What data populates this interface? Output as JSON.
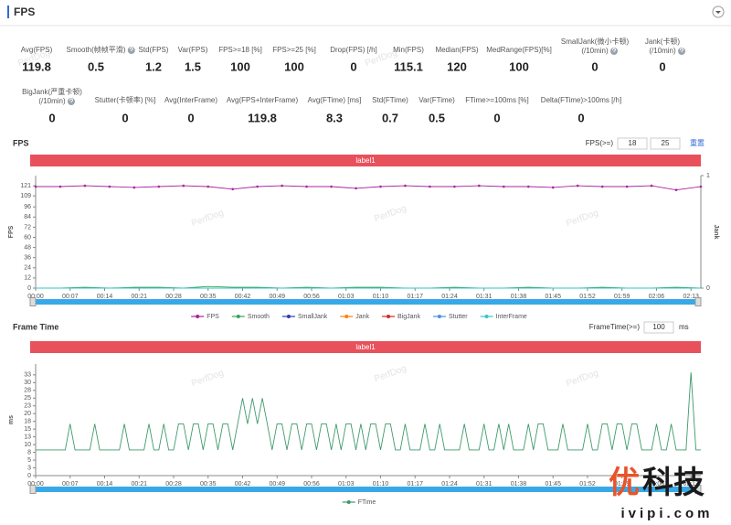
{
  "header": {
    "title": "FPS"
  },
  "stats": [
    [
      {
        "label": [
          "Avg(FPS)"
        ],
        "value": 119.8
      },
      {
        "label": [
          "Smooth(帧帧平滑)"
        ],
        "value": 0.5
      },
      {
        "label": [
          "Std(FPS)"
        ],
        "value": 1.2
      },
      {
        "label": [
          "Var(FPS)"
        ],
        "value": 1.5
      },
      {
        "label": [
          "FPS>=18 [%]"
        ],
        "value": 100
      },
      {
        "label": [
          "FPS>=25 [%]"
        ],
        "value": 100
      },
      {
        "label": [
          "Drop(FPS) [/h]"
        ],
        "value": 0
      },
      {
        "label": [
          "Min(FPS)"
        ],
        "value": 115.1
      },
      {
        "label": [
          "Median(FPS)"
        ],
        "value": 120
      },
      {
        "label": [
          "MedRange(FPS)[%]"
        ],
        "value": 100
      },
      {
        "label": [
          "SmallJank(微小卡顿)",
          "(/10min)"
        ],
        "value": 0
      },
      {
        "label": [
          "Jank(卡顿)",
          "(/10min)"
        ],
        "value": 0
      }
    ],
    [
      {
        "label": [
          "BigJank(严重卡顿)",
          "(/10min)"
        ],
        "value": 0
      },
      {
        "label": [
          "Stutter(卡顿率) [%]"
        ],
        "value": 0
      },
      {
        "label": [
          "Avg(InterFrame)"
        ],
        "value": 0
      },
      {
        "label": [
          "Avg(FPS+InterFrame)"
        ],
        "value": 119.8
      },
      {
        "label": [
          "Avg(FTime) [ms]"
        ],
        "value": 8.3
      },
      {
        "label": [
          "Std(FTime)"
        ],
        "value": 0.7
      },
      {
        "label": [
          "Var(FTime)"
        ],
        "value": 0.5
      },
      {
        "label": [
          "FTime>=100ms [%]"
        ],
        "value": 0
      },
      {
        "label": [
          "Delta(FTime)>100ms [/h]"
        ],
        "value": 0
      }
    ]
  ],
  "chart_data": [
    {
      "type": "line",
      "title": "FPS",
      "threshold_label": "FPS(>=)",
      "thresholds": [
        18,
        25
      ],
      "reset": "重置",
      "band_label": "label1",
      "ylabel": "FPS",
      "y2label": "Jank",
      "x": [
        0,
        5,
        10,
        15,
        20,
        25,
        30,
        35,
        40,
        45,
        50,
        55,
        60,
        65,
        70,
        75,
        80,
        85,
        90,
        95,
        100,
        105,
        110,
        115,
        120,
        125,
        130,
        135
      ],
      "xlim": [
        0,
        135
      ],
      "xticks": [
        {
          "value": 0,
          "label": "00:00"
        },
        {
          "value": 7,
          "label": "00:07"
        },
        {
          "value": 14,
          "label": "00:14"
        },
        {
          "value": 21,
          "label": "00:21"
        },
        {
          "value": 28,
          "label": "00:28"
        },
        {
          "value": 35,
          "label": "00:35"
        },
        {
          "value": 42,
          "label": "00:42"
        },
        {
          "value": 49,
          "label": "00:49"
        },
        {
          "value": 56,
          "label": "00:56"
        },
        {
          "value": 63,
          "label": "01:03"
        },
        {
          "value": 70,
          "label": "01:10"
        },
        {
          "value": 77,
          "label": "01:17"
        },
        {
          "value": 84,
          "label": "01:24"
        },
        {
          "value": 91,
          "label": "01:31"
        },
        {
          "value": 98,
          "label": "01:38"
        },
        {
          "value": 105,
          "label": "01:45"
        },
        {
          "value": 112,
          "label": "01:52"
        },
        {
          "value": 119,
          "label": "01:59"
        },
        {
          "value": 126,
          "label": "02:06"
        },
        {
          "value": 133,
          "label": "02:13"
        }
      ],
      "ylim": [
        0,
        133
      ],
      "yticks": [
        0,
        12,
        24,
        36,
        48,
        60,
        72,
        84,
        96,
        109,
        121
      ],
      "y2lim": [
        0,
        1
      ],
      "y2ticks": [
        0,
        1
      ],
      "series": [
        {
          "name": "FPS",
          "color": "#a8259c",
          "values": [
            120,
            120,
            121,
            120,
            119,
            120,
            121,
            120,
            117,
            120,
            121,
            120,
            120,
            118,
            120,
            121,
            120,
            120,
            121,
            120,
            120,
            119,
            121,
            120,
            120,
            121,
            116,
            120
          ]
        },
        {
          "name": "Smooth",
          "color": "#3aa35b",
          "values": [
            0,
            0,
            1,
            0,
            1,
            1,
            0,
            2,
            1,
            1,
            0,
            1,
            0,
            1,
            1,
            0,
            0,
            1,
            0,
            0,
            1,
            0,
            0,
            1,
            0,
            0,
            1,
            0
          ]
        },
        {
          "name": "SmallJank",
          "color": "#2f3bb5",
          "axis": "y2",
          "values": [
            0,
            0,
            0,
            0,
            0,
            0,
            0,
            0,
            0,
            0,
            0,
            0,
            0,
            0,
            0,
            0,
            0,
            0,
            0,
            0,
            0,
            0,
            0,
            0,
            0,
            0,
            0,
            0
          ]
        },
        {
          "name": "Jank",
          "color": "#ff7f0e",
          "axis": "y2",
          "values": [
            0,
            0,
            0,
            0,
            0,
            0,
            0,
            0,
            0,
            0,
            0,
            0,
            0,
            0,
            0,
            0,
            0,
            0,
            0,
            0,
            0,
            0,
            0,
            0,
            0,
            0,
            0,
            0
          ]
        },
        {
          "name": "BigJank",
          "color": "#d62728",
          "axis": "y2",
          "values": [
            0,
            0,
            0,
            0,
            0,
            0,
            0,
            0,
            0,
            0,
            0,
            0,
            0,
            0,
            0,
            0,
            0,
            0,
            0,
            0,
            0,
            0,
            0,
            0,
            0,
            0,
            0,
            0
          ]
        },
        {
          "name": "Stutter",
          "color": "#4a90e2",
          "values": [
            0,
            0,
            0,
            0,
            0,
            0,
            0,
            0,
            0,
            0,
            0,
            0,
            0,
            0,
            0,
            0,
            0,
            0,
            0,
            0,
            0,
            0,
            0,
            0,
            0,
            0,
            0,
            0
          ]
        },
        {
          "name": "InterFrame",
          "color": "#36c5c5",
          "values": [
            0,
            0,
            0,
            0,
            0,
            0,
            0,
            0,
            0,
            0,
            0,
            0,
            0,
            0,
            0,
            0,
            0,
            0,
            0,
            0,
            0,
            0,
            0,
            0,
            0,
            0,
            0,
            0
          ]
        }
      ]
    },
    {
      "type": "line",
      "title": "Frame Time",
      "threshold_label": "FrameTime(>=)",
      "thresholds": [
        100
      ],
      "threshold_unit": "ms",
      "band_label": "label1",
      "ylabel": "ms",
      "x": [
        0,
        1,
        2,
        3,
        4,
        5,
        6,
        7,
        8,
        9,
        10,
        11,
        12,
        13,
        14,
        15,
        16,
        17,
        18,
        19,
        20,
        21,
        22,
        23,
        24,
        25,
        26,
        27,
        28,
        29,
        30,
        31,
        32,
        33,
        34,
        35,
        36,
        37,
        38,
        39,
        40,
        41,
        42,
        43,
        44,
        45,
        46,
        47,
        48,
        49,
        50,
        51,
        52,
        53,
        54,
        55,
        56,
        57,
        58,
        59,
        60,
        61,
        62,
        63,
        64,
        65,
        66,
        67,
        68,
        69,
        70,
        71,
        72,
        73,
        74,
        75,
        76,
        77,
        78,
        79,
        80,
        81,
        82,
        83,
        84,
        85,
        86,
        87,
        88,
        89,
        90,
        91,
        92,
        93,
        94,
        95,
        96,
        97,
        98,
        99,
        100,
        101,
        102,
        103,
        104,
        105,
        106,
        107,
        108,
        109,
        110,
        111,
        112,
        113,
        114,
        115,
        116,
        117,
        118,
        119,
        120,
        121,
        122,
        123,
        124,
        125,
        126,
        127,
        128,
        129,
        130,
        131,
        132,
        133,
        134,
        135
      ],
      "xlim": [
        0,
        135
      ],
      "xticks": [
        {
          "value": 0,
          "label": "00:00"
        },
        {
          "value": 7,
          "label": "00:07"
        },
        {
          "value": 14,
          "label": "00:14"
        },
        {
          "value": 21,
          "label": "00:21"
        },
        {
          "value": 28,
          "label": "00:28"
        },
        {
          "value": 35,
          "label": "00:35"
        },
        {
          "value": 42,
          "label": "00:42"
        },
        {
          "value": 49,
          "label": "00:49"
        },
        {
          "value": 56,
          "label": "00:56"
        },
        {
          "value": 63,
          "label": "01:03"
        },
        {
          "value": 70,
          "label": "01:10"
        },
        {
          "value": 77,
          "label": "01:17"
        },
        {
          "value": 84,
          "label": "01:24"
        },
        {
          "value": 91,
          "label": "01:31"
        },
        {
          "value": 98,
          "label": "01:38"
        },
        {
          "value": 105,
          "label": "01:45"
        },
        {
          "value": 112,
          "label": "01:52"
        },
        {
          "value": 119,
          "label": "01:59"
        },
        {
          "value": 126,
          "label": "02:06"
        },
        {
          "value": 133,
          "label": "02:13"
        }
      ],
      "ylim": [
        0,
        36
      ],
      "yticks": [
        0,
        {
          "value": 2.5,
          "label": "3"
        },
        5,
        {
          "value": 7.5,
          "label": "8"
        },
        10,
        {
          "value": 12.5,
          "label": "13"
        },
        15,
        {
          "value": 17.5,
          "label": "18"
        },
        20,
        {
          "value": 22.5,
          "label": "23"
        },
        25,
        {
          "value": 27.5,
          "label": "28"
        },
        30,
        {
          "value": 32.5,
          "label": "33"
        }
      ],
      "series": [
        {
          "name": "FTime",
          "color": "#3d9a6a",
          "values": [
            8.3,
            8.3,
            8.3,
            8.3,
            8.3,
            8.3,
            8.3,
            16.7,
            8.3,
            8.3,
            8.3,
            8.3,
            16.7,
            8.3,
            8.3,
            8.3,
            8.3,
            8.3,
            16.7,
            8.3,
            8.3,
            8.3,
            8.3,
            16.7,
            8.3,
            8.3,
            16.7,
            8.3,
            8.3,
            16.7,
            16.7,
            8.3,
            16.7,
            16.7,
            8.3,
            16.7,
            16.7,
            8.3,
            16.7,
            16.7,
            8.3,
            16.7,
            25,
            16.7,
            25,
            16.7,
            25,
            16.7,
            8.3,
            16.7,
            16.7,
            8.3,
            16.7,
            16.7,
            8.3,
            16.7,
            16.7,
            8.3,
            16.7,
            16.7,
            8.3,
            16.7,
            8.3,
            16.7,
            16.7,
            8.3,
            16.7,
            8.3,
            16.7,
            16.7,
            8.3,
            16.7,
            16.7,
            8.3,
            8.3,
            16.7,
            8.3,
            8.3,
            8.3,
            16.7,
            8.3,
            8.3,
            16.7,
            8.3,
            8.3,
            8.3,
            8.3,
            16.7,
            8.3,
            8.3,
            8.3,
            16.7,
            8.3,
            8.3,
            16.7,
            8.3,
            16.7,
            8.3,
            8.3,
            8.3,
            16.7,
            8.3,
            16.7,
            16.7,
            8.3,
            8.3,
            8.3,
            16.7,
            8.3,
            8.3,
            8.3,
            8.3,
            16.7,
            8.3,
            8.3,
            16.7,
            16.7,
            8.3,
            16.7,
            16.7,
            8.3,
            16.7,
            16.7,
            8.3,
            8.3,
            8.3,
            16.7,
            8.3,
            8.3,
            16.7,
            8.3,
            8.3,
            8.3,
            33.3,
            8.3,
            8.3
          ]
        }
      ]
    }
  ],
  "watermark": {
    "text": "PerfDog",
    "brand": [
      "优",
      "科技"
    ],
    "site": "ivipi.com"
  }
}
